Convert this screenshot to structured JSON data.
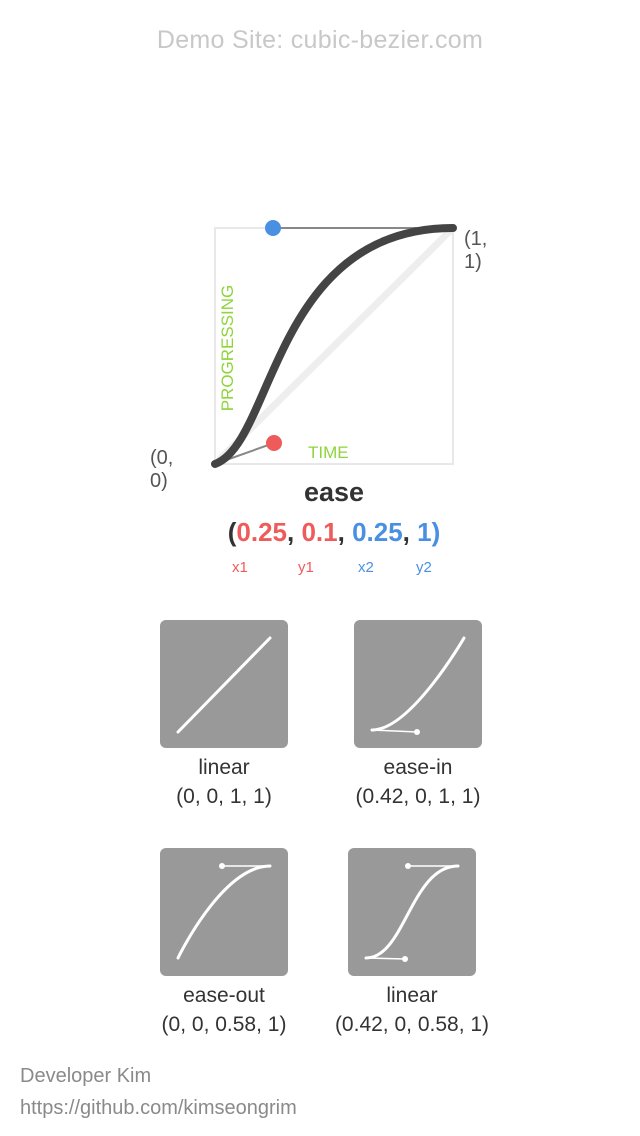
{
  "header": {
    "site_title": "Demo Site: cubic-bezier.com"
  },
  "editor": {
    "origin_label": "(0, 0)",
    "end_label": "(1, 1)",
    "x_axis_label": "TIME",
    "y_axis_label": "PROGRESSING",
    "curve_name": "ease",
    "values": {
      "open": "(",
      "x1": "0.25",
      "y1": "0.1",
      "x2": "0.25",
      "y2": "1",
      "sep": ", ",
      "close": ")"
    },
    "param_labels": {
      "x1": "x1",
      "y1": "y1",
      "x2": "x2",
      "y2": "y2"
    },
    "colors": {
      "p1": "#ef5b5b",
      "p2": "#4a90e2",
      "axis": "#8ed43a",
      "curve": "#444444"
    }
  },
  "presets": [
    {
      "name": "linear",
      "values": "(0, 0, 1, 1)"
    },
    {
      "name": "ease-in",
      "values": "(0.42, 0, 1, 1)"
    },
    {
      "name": "ease-out",
      "values": "(0, 0, 0.58, 1)"
    },
    {
      "name": "linear",
      "values": "(0.42, 0, 0.58, 1)"
    }
  ],
  "footer": {
    "author": "Developer Kim",
    "url": "https://github.com/kimseongrim"
  }
}
